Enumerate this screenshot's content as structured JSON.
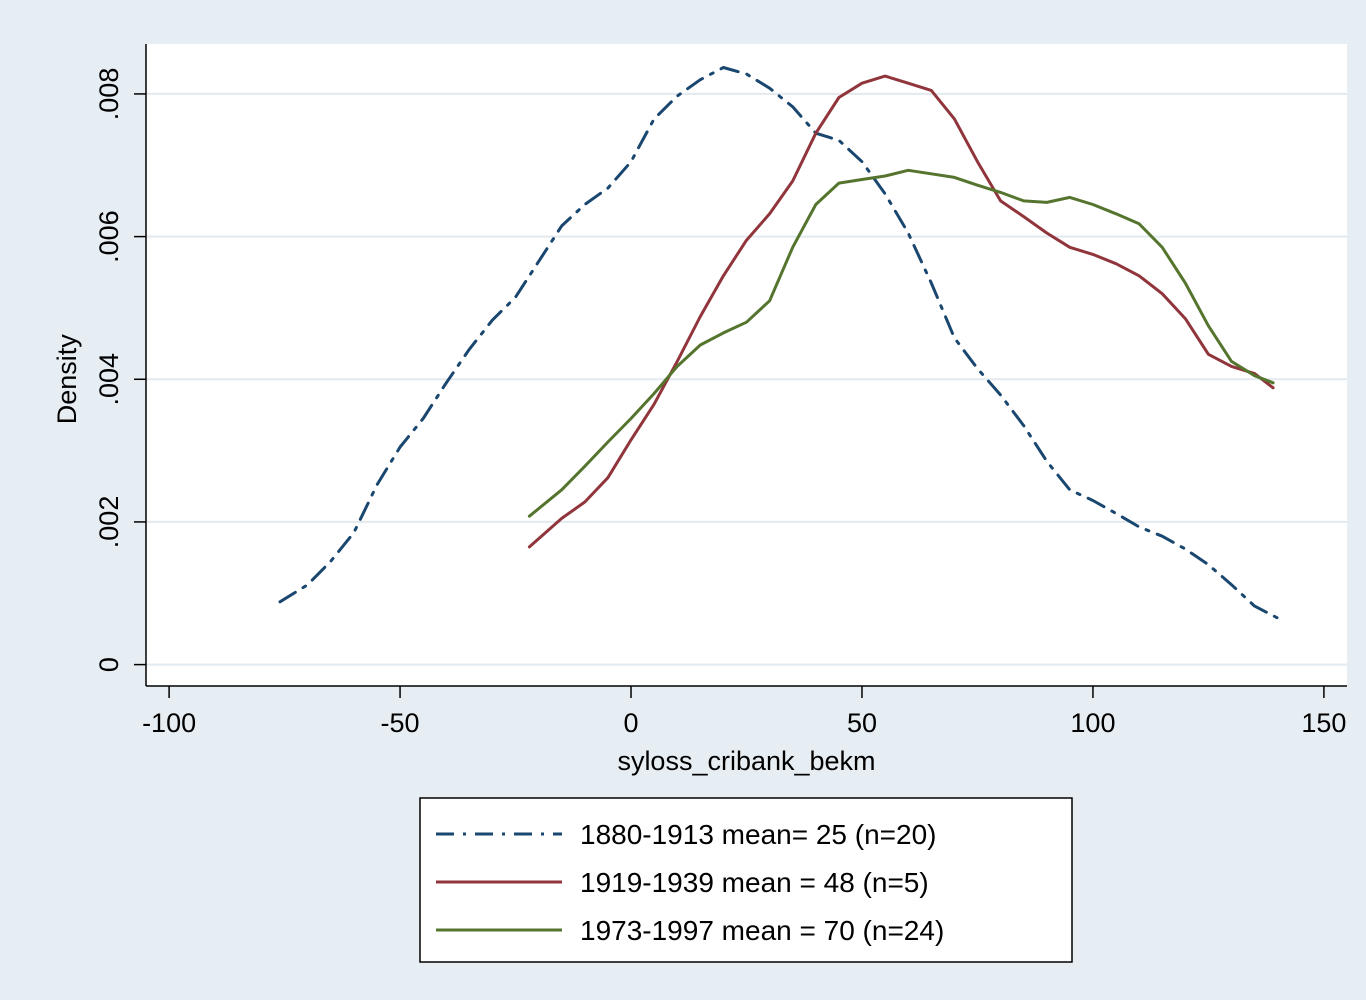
{
  "chart_data": {
    "type": "line",
    "title": "",
    "xlabel": "syloss_cribank_bekm",
    "ylabel": "Density",
    "xlim": [
      -105,
      155
    ],
    "ylim": [
      -0.0003,
      0.0087
    ],
    "x_ticks": [
      -100,
      -50,
      0,
      50,
      100,
      150
    ],
    "x_tick_labels": [
      "-100",
      "-50",
      "0",
      "50",
      "100",
      "150"
    ],
    "y_ticks": [
      0,
      0.002,
      0.004,
      0.006,
      0.008
    ],
    "y_tick_labels": [
      "0",
      ".002",
      ".004",
      ".006",
      ".008"
    ],
    "grid": true,
    "legend_position": "bottom",
    "colors": {
      "background": "#e7eef3",
      "plot_background": "#ffffff",
      "grid": "#e2eaf0"
    },
    "series": [
      {
        "name": "1880-1913 mean= 25 (n=20)",
        "color": "#1a476f",
        "dash": "dash-dot",
        "x": [
          -76,
          -70,
          -65,
          -60,
          -55,
          -50,
          -45,
          -40,
          -35,
          -30,
          -25,
          -20,
          -15,
          -10,
          -5,
          0,
          5,
          10,
          15,
          20,
          25,
          30,
          35,
          40,
          45,
          50,
          55,
          60,
          65,
          70,
          75,
          80,
          85,
          90,
          95,
          100,
          105,
          110,
          115,
          120,
          125,
          130,
          135,
          141
        ],
        "y": [
          0.00088,
          0.00112,
          0.00145,
          0.00185,
          0.00252,
          0.00305,
          0.00345,
          0.00395,
          0.00442,
          0.00483,
          0.00515,
          0.00565,
          0.00615,
          0.00645,
          0.00668,
          0.00705,
          0.00765,
          0.00797,
          0.0082,
          0.00837,
          0.00828,
          0.00808,
          0.00782,
          0.00745,
          0.00735,
          0.00705,
          0.0066,
          0.00605,
          0.00535,
          0.00458,
          0.00415,
          0.00378,
          0.00335,
          0.00285,
          0.00245,
          0.0023,
          0.00212,
          0.00193,
          0.0018,
          0.00162,
          0.0014,
          0.00112,
          0.00082,
          0.00062
        ]
      },
      {
        "name": "1919-1939 mean = 48 (n=5)",
        "color": "#90353b",
        "dash": "solid",
        "x": [
          -22,
          -15,
          -10,
          -5,
          0,
          5,
          10,
          15,
          20,
          25,
          30,
          35,
          40,
          45,
          50,
          55,
          60,
          65,
          70,
          75,
          80,
          85,
          90,
          95,
          100,
          105,
          110,
          115,
          120,
          125,
          130,
          135,
          139
        ],
        "y": [
          0.00165,
          0.00205,
          0.00228,
          0.00262,
          0.00315,
          0.00365,
          0.00425,
          0.00488,
          0.00545,
          0.00595,
          0.00632,
          0.00678,
          0.00745,
          0.00795,
          0.00815,
          0.00825,
          0.00815,
          0.00805,
          0.00765,
          0.00705,
          0.0065,
          0.00628,
          0.00605,
          0.00585,
          0.00575,
          0.00562,
          0.00545,
          0.0052,
          0.00485,
          0.00435,
          0.00418,
          0.00408,
          0.00388
        ]
      },
      {
        "name": "1973-1997 mean = 70 (n=24)",
        "color": "#55752f",
        "dash": "solid",
        "x": [
          -22,
          -15,
          -10,
          -5,
          0,
          5,
          10,
          15,
          20,
          25,
          30,
          35,
          40,
          45,
          50,
          55,
          60,
          65,
          70,
          75,
          80,
          85,
          90,
          95,
          100,
          105,
          110,
          115,
          120,
          125,
          130,
          135,
          139
        ],
        "y": [
          0.00208,
          0.00245,
          0.00278,
          0.00312,
          0.00345,
          0.0038,
          0.00418,
          0.00448,
          0.00465,
          0.0048,
          0.0051,
          0.00585,
          0.00645,
          0.00675,
          0.0068,
          0.00685,
          0.00693,
          0.00688,
          0.00683,
          0.00672,
          0.00662,
          0.0065,
          0.00648,
          0.00655,
          0.00645,
          0.00632,
          0.00618,
          0.00585,
          0.00535,
          0.00475,
          0.00425,
          0.00405,
          0.00395
        ]
      }
    ]
  }
}
